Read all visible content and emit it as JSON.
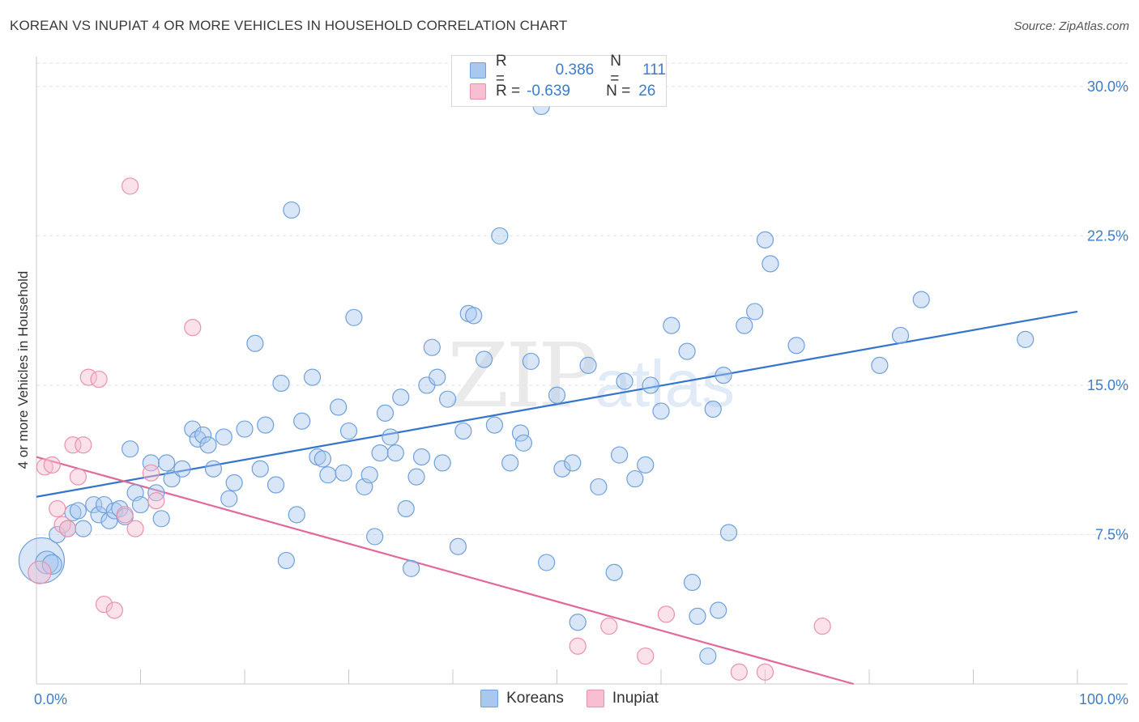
{
  "title": "KOREAN VS INUPIAT 4 OR MORE VEHICLES IN HOUSEHOLD CORRELATION CHART",
  "source": "Source: ZipAtlas.com",
  "watermark": {
    "main": "ZIP",
    "sub": "atlas"
  },
  "legend": {
    "rows": [
      {
        "r_label": "R =",
        "r_value": "0.386",
        "n_label": "N =",
        "n_value": "111",
        "color": "#a9c8f0",
        "border": "#6fa0dc"
      },
      {
        "r_label": "R =",
        "r_value": "-0.639",
        "n_label": "N =",
        "n_value": "26",
        "color": "#f7bfd1",
        "border": "#e892ae"
      }
    ]
  },
  "bottom_legend": [
    {
      "label": "Koreans",
      "color": "#a9c8f0",
      "border": "#6fa0dc"
    },
    {
      "label": "Inupiat",
      "color": "#f7bfd1",
      "border": "#e892ae"
    }
  ],
  "chart_data": {
    "type": "scatter",
    "title": "KOREAN VS INUPIAT 4 OR MORE VEHICLES IN HOUSEHOLD CORRELATION CHART",
    "xlabel": "",
    "ylabel": "4 or more Vehicles in Household",
    "xlim": [
      0,
      100
    ],
    "ylim": [
      0,
      31.5
    ],
    "x_tick_labels": [
      "0.0%",
      "100.0%"
    ],
    "y_ticks": [
      7.5,
      15.0,
      22.5,
      30.0
    ],
    "y_tick_labels": [
      "7.5%",
      "15.0%",
      "22.5%",
      "30.0%"
    ],
    "grid": true,
    "series": [
      {
        "name": "Koreans",
        "color": "#6fa0dc",
        "fill": "#a9c8f0",
        "trend": {
          "x": [
            0,
            100
          ],
          "y": [
            9.4,
            18.7
          ],
          "color": "#3474cc"
        },
        "points": [
          [
            0.5,
            6.2,
            28
          ],
          [
            1.0,
            6.1,
            14
          ],
          [
            1.5,
            6.0,
            12
          ],
          [
            2.0,
            7.5,
            10
          ],
          [
            3.0,
            7.8,
            10
          ],
          [
            3.5,
            8.6,
            10
          ],
          [
            4.0,
            8.7,
            10
          ],
          [
            4.5,
            7.8,
            10
          ],
          [
            5.5,
            9.0,
            10
          ],
          [
            6.0,
            8.5,
            10
          ],
          [
            6.5,
            9.0,
            10
          ],
          [
            7.0,
            8.2,
            10
          ],
          [
            7.5,
            8.7,
            10
          ],
          [
            8.0,
            8.8,
            10
          ],
          [
            8.5,
            8.4,
            10
          ],
          [
            9.0,
            11.8,
            10
          ],
          [
            9.5,
            9.6,
            10
          ],
          [
            10.0,
            9.0,
            10
          ],
          [
            11.0,
            11.1,
            10
          ],
          [
            11.5,
            9.6,
            10
          ],
          [
            12.0,
            8.3,
            10
          ],
          [
            12.5,
            11.1,
            10
          ],
          [
            13.0,
            10.3,
            10
          ],
          [
            14.0,
            10.8,
            10
          ],
          [
            15.0,
            12.8,
            10
          ],
          [
            15.5,
            12.3,
            10
          ],
          [
            16.0,
            12.5,
            10
          ],
          [
            16.5,
            12.0,
            10
          ],
          [
            17.0,
            10.8,
            10
          ],
          [
            18.0,
            12.4,
            10
          ],
          [
            18.5,
            9.3,
            10
          ],
          [
            19.0,
            10.1,
            10
          ],
          [
            20.0,
            12.8,
            10
          ],
          [
            21.0,
            17.1,
            10
          ],
          [
            21.5,
            10.8,
            10
          ],
          [
            22.0,
            13.0,
            10
          ],
          [
            23.0,
            10.0,
            10
          ],
          [
            23.5,
            15.1,
            10
          ],
          [
            24.0,
            6.2,
            10
          ],
          [
            24.5,
            23.8,
            10
          ],
          [
            25.0,
            8.5,
            10
          ],
          [
            25.5,
            13.2,
            10
          ],
          [
            26.5,
            15.4,
            10
          ],
          [
            27.0,
            11.4,
            10
          ],
          [
            27.5,
            11.3,
            10
          ],
          [
            28.0,
            10.5,
            10
          ],
          [
            29.0,
            13.9,
            10
          ],
          [
            29.5,
            10.6,
            10
          ],
          [
            30.0,
            12.7,
            10
          ],
          [
            30.5,
            18.4,
            10
          ],
          [
            31.5,
            9.9,
            10
          ],
          [
            32.0,
            10.5,
            10
          ],
          [
            32.5,
            7.4,
            10
          ],
          [
            33.0,
            11.6,
            10
          ],
          [
            33.5,
            13.6,
            10
          ],
          [
            34.0,
            12.4,
            10
          ],
          [
            34.5,
            11.6,
            10
          ],
          [
            35.0,
            14.4,
            10
          ],
          [
            35.5,
            8.8,
            10
          ],
          [
            36.0,
            5.8,
            10
          ],
          [
            36.5,
            10.4,
            10
          ],
          [
            37.0,
            11.4,
            10
          ],
          [
            37.5,
            15.0,
            10
          ],
          [
            38.0,
            16.9,
            10
          ],
          [
            38.5,
            15.4,
            10
          ],
          [
            39.0,
            11.1,
            10
          ],
          [
            39.5,
            14.3,
            10
          ],
          [
            40.5,
            6.9,
            10
          ],
          [
            41.0,
            12.7,
            10
          ],
          [
            41.5,
            18.6,
            10
          ],
          [
            42.0,
            18.5,
            10
          ],
          [
            43.0,
            16.3,
            10
          ],
          [
            44.0,
            13.0,
            10
          ],
          [
            44.5,
            22.5,
            10
          ],
          [
            45.5,
            11.1,
            10
          ],
          [
            46.5,
            12.6,
            10
          ],
          [
            46.8,
            12.1,
            10
          ],
          [
            47.5,
            16.2,
            10
          ],
          [
            48.5,
            29.0,
            10
          ],
          [
            49.0,
            6.1,
            10
          ],
          [
            50.0,
            14.5,
            10
          ],
          [
            50.5,
            10.8,
            10
          ],
          [
            51.5,
            11.1,
            10
          ],
          [
            52.0,
            3.1,
            10
          ],
          [
            53.0,
            16.0,
            10
          ],
          [
            54.0,
            9.9,
            10
          ],
          [
            55.5,
            5.6,
            10
          ],
          [
            56.0,
            11.5,
            10
          ],
          [
            56.5,
            15.2,
            10
          ],
          [
            57.5,
            10.3,
            10
          ],
          [
            58.5,
            11.0,
            10
          ],
          [
            59.0,
            15.0,
            10
          ],
          [
            60.0,
            13.7,
            10
          ],
          [
            61.0,
            18.0,
            10
          ],
          [
            62.5,
            16.7,
            10
          ],
          [
            63.0,
            5.1,
            10
          ],
          [
            63.5,
            3.4,
            10
          ],
          [
            64.5,
            1.4,
            10
          ],
          [
            65.0,
            13.8,
            10
          ],
          [
            65.5,
            3.7,
            10
          ],
          [
            66.0,
            15.5,
            10
          ],
          [
            66.5,
            7.6,
            10
          ],
          [
            68.0,
            18.0,
            10
          ],
          [
            69.0,
            18.7,
            10
          ],
          [
            70.0,
            22.3,
            10
          ],
          [
            70.5,
            21.1,
            10
          ],
          [
            73.0,
            17.0,
            10
          ],
          [
            81.0,
            16.0,
            10
          ],
          [
            83.0,
            17.5,
            10
          ],
          [
            85.0,
            19.3,
            10
          ],
          [
            95.0,
            17.3,
            10
          ]
        ]
      },
      {
        "name": "Inupiat",
        "color": "#e892ae",
        "fill": "#f7bfd1",
        "trend": {
          "x": [
            0,
            78.5
          ],
          "y": [
            11.4,
            0.0
          ],
          "color": "#e0699a"
        },
        "points": [
          [
            0.3,
            5.6,
            14
          ],
          [
            0.8,
            10.9,
            10
          ],
          [
            1.5,
            11.0,
            10
          ],
          [
            2.0,
            8.8,
            10
          ],
          [
            2.5,
            8.0,
            10
          ],
          [
            3.0,
            7.8,
            10
          ],
          [
            3.5,
            12.0,
            10
          ],
          [
            4.0,
            10.4,
            10
          ],
          [
            4.5,
            12.0,
            10
          ],
          [
            5.0,
            15.4,
            10
          ],
          [
            6.0,
            15.3,
            10
          ],
          [
            6.5,
            4.0,
            10
          ],
          [
            7.5,
            3.7,
            10
          ],
          [
            8.5,
            8.5,
            10
          ],
          [
            9.0,
            25.0,
            10
          ],
          [
            9.5,
            7.8,
            10
          ],
          [
            11.0,
            10.6,
            10
          ],
          [
            11.5,
            9.2,
            10
          ],
          [
            15.0,
            17.9,
            10
          ],
          [
            52.0,
            1.9,
            10
          ],
          [
            55.0,
            2.9,
            10
          ],
          [
            58.5,
            1.4,
            10
          ],
          [
            60.5,
            3.5,
            10
          ],
          [
            67.5,
            0.6,
            10
          ],
          [
            70.0,
            0.6,
            10
          ],
          [
            75.5,
            2.9,
            10
          ]
        ]
      }
    ]
  }
}
